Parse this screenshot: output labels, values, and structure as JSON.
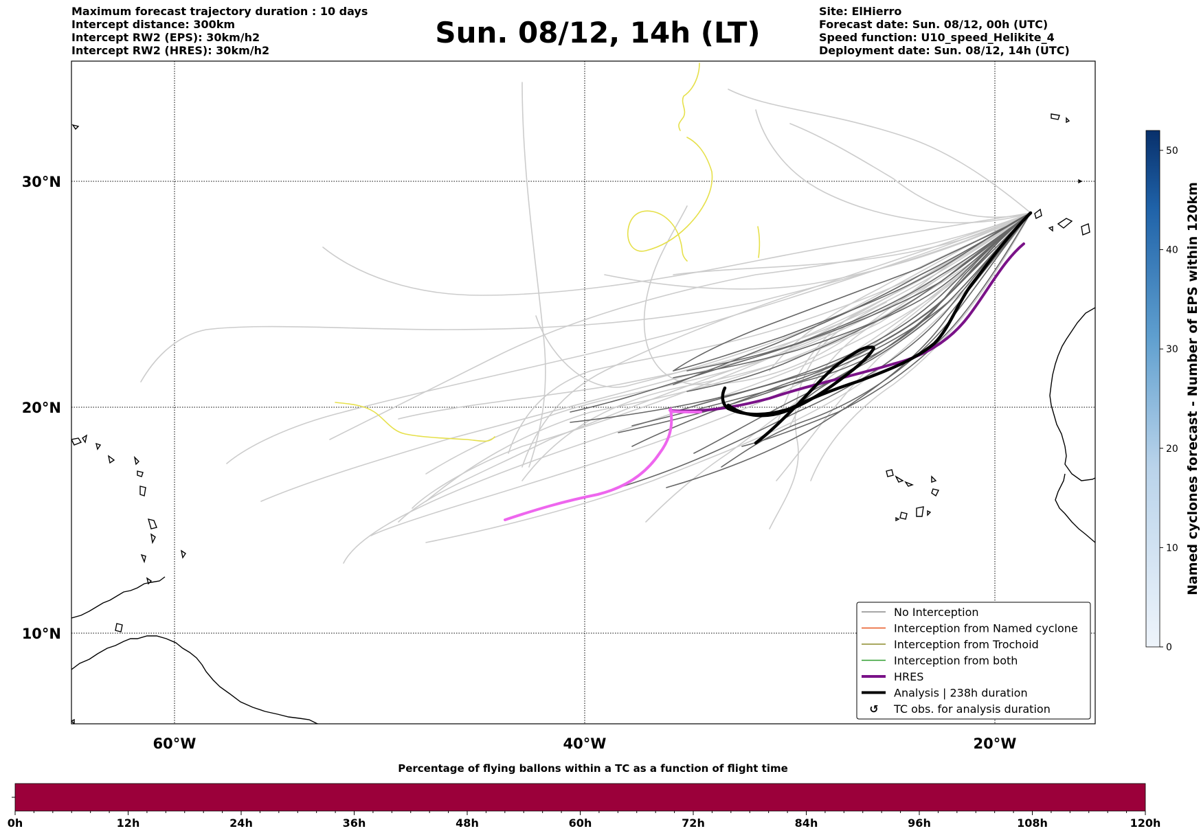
{
  "header": {
    "left_lines": [
      "Maximum forecast trajectory duration : 10 days",
      "Intercept distance: 300km",
      "Intercept RW2 (EPS):  30km/h2",
      "Intercept RW2 (HRES): 30km/h2"
    ],
    "title": "Sun. 08/12, 14h (LT)",
    "right_lines": [
      "Site: ElHierro",
      "Forecast date: Sun. 08/12, 00h (UTC)",
      "Speed function: U10_speed_Helikite_4",
      "Deployment date: Sun. 08/12, 14h (UTC)"
    ]
  },
  "map": {
    "lon_ticks": [
      {
        "label": "60°W",
        "lon": -60
      },
      {
        "label": "40°W",
        "lon": -40
      },
      {
        "label": "20°W",
        "lon": -20
      }
    ],
    "lat_ticks": [
      {
        "label": "30°N",
        "lat": 30
      },
      {
        "label": "20°N",
        "lat": 20
      },
      {
        "label": "10°N",
        "lat": 10
      }
    ]
  },
  "legend": {
    "items": [
      {
        "label": "No Interception",
        "color": "#888888",
        "style": "thin"
      },
      {
        "label": "Interception from Named cyclone",
        "color": "#e8541e",
        "style": "thin"
      },
      {
        "label": "Interception from Trochoid",
        "color": "#8b8a2a",
        "style": "thin"
      },
      {
        "label": "Interception from both",
        "color": "#2e9e2e",
        "style": "thin"
      },
      {
        "label": "HRES",
        "color": "#7a1288",
        "style": "thick"
      },
      {
        "label": "Analysis | 238h duration",
        "color": "#000000",
        "style": "thick"
      },
      {
        "label": "TC obs. for analysis duration",
        "color": "#000000",
        "style": "symbol"
      }
    ]
  },
  "colorbar_right": {
    "label": "Named cyclones forecast - Number of EPS within 120km",
    "ticks": [
      "0",
      "10",
      "20",
      "30",
      "40",
      "50"
    ],
    "min": 0,
    "max": 52,
    "color_low": "#e8f1fb",
    "color_high": "#08306b"
  },
  "bottom_bar": {
    "title": "Percentage of flying ballons within a TC as a function of flight time",
    "ticks": [
      "0h",
      "12h",
      "24h",
      "36h",
      "48h",
      "60h",
      "72h",
      "84h",
      "96h",
      "108h",
      "120h"
    ],
    "fill_color": "#9b003a"
  },
  "colors": {
    "eps_far": "#cccccc",
    "eps_near": "#666666",
    "trochoid": "#e6e04a",
    "hres": "#7a1288",
    "hres_tail": "#ee66ee",
    "analysis": "#000000"
  }
}
